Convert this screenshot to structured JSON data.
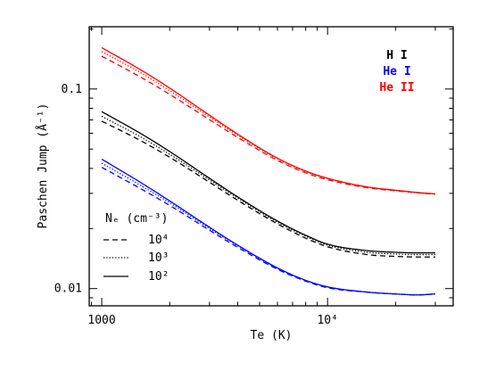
{
  "chart_data": {
    "type": "line",
    "xlabel": "Te (K)",
    "ylabel": "Paschen Jump (Å⁻¹)",
    "xscale": "log",
    "yscale": "log",
    "xlim": [
      880,
      36000
    ],
    "ylim": [
      0.0082,
      0.205
    ],
    "x_ticks": [
      {
        "value": 1000,
        "label": "1000"
      },
      {
        "value": 10000,
        "label": "10⁴"
      }
    ],
    "y_ticks": [
      {
        "value": 0.01,
        "label": "0.01"
      },
      {
        "value": 0.1,
        "label": "0.1"
      }
    ],
    "grid": false,
    "species_legend": {
      "placement": "top-right",
      "entries": [
        {
          "label": "H I",
          "color": "#000000"
        },
        {
          "label": "He I",
          "color": "#0000ff"
        },
        {
          "label": "He II",
          "color": "#ff0000"
        }
      ]
    },
    "density_legend": {
      "placement": "bottom-left",
      "title": "Nₑ (cm⁻³)",
      "entries": [
        {
          "label": "10⁴",
          "dash": "dashed"
        },
        {
          "label": "10³",
          "dash": "dotted"
        },
        {
          "label": "10²",
          "dash": "solid"
        }
      ]
    },
    "x": [
      1000,
      1500,
      2000,
      3000,
      4000,
      6000,
      8000,
      10000,
      15000,
      20000,
      25000,
      30000
    ],
    "series": [
      {
        "species": "He II",
        "density": "10²",
        "color": "#ff0000",
        "dash": "solid",
        "values": [
          0.161,
          0.124,
          0.101,
          0.0739,
          0.0594,
          0.045,
          0.0388,
          0.0357,
          0.0323,
          0.0311,
          0.0303,
          0.0298
        ]
      },
      {
        "species": "He II",
        "density": "10³",
        "color": "#ff0000",
        "dash": "dotted",
        "values": [
          0.154,
          0.12,
          0.098,
          0.0725,
          0.0586,
          0.0447,
          0.0386,
          0.0356,
          0.0322,
          0.031,
          0.0302,
          0.0298
        ]
      },
      {
        "species": "He II",
        "density": "10⁴",
        "color": "#ff0000",
        "dash": "dashed",
        "values": [
          0.146,
          0.114,
          0.094,
          0.0702,
          0.0572,
          0.0439,
          0.038,
          0.0351,
          0.032,
          0.0309,
          0.0302,
          0.0297
        ]
      },
      {
        "species": "H I",
        "density": "10²",
        "color": "#000000",
        "dash": "solid",
        "values": [
          0.077,
          0.0595,
          0.0486,
          0.0357,
          0.0288,
          0.0218,
          0.0185,
          0.0167,
          0.0155,
          0.0152,
          0.0151,
          0.0151
        ]
      },
      {
        "species": "H I",
        "density": "10³",
        "color": "#000000",
        "dash": "dotted",
        "values": [
          0.073,
          0.0572,
          0.0471,
          0.035,
          0.0284,
          0.0215,
          0.0183,
          0.0165,
          0.0152,
          0.0149,
          0.0148,
          0.0148
        ]
      },
      {
        "species": "H I",
        "density": "10⁴",
        "color": "#000000",
        "dash": "dashed",
        "values": [
          0.069,
          0.0548,
          0.0455,
          0.0341,
          0.0277,
          0.0211,
          0.0179,
          0.0162,
          0.0148,
          0.0145,
          0.0144,
          0.0144
        ]
      },
      {
        "species": "He I",
        "density": "10²",
        "color": "#0000ff",
        "dash": "solid",
        "values": [
          0.0445,
          0.0338,
          0.0275,
          0.0203,
          0.0165,
          0.0127,
          0.011,
          0.0102,
          0.0096,
          0.0094,
          0.0093,
          0.0094
        ]
      },
      {
        "species": "He I",
        "density": "10³",
        "color": "#0000ff",
        "dash": "dotted",
        "values": [
          0.0425,
          0.0327,
          0.0269,
          0.02,
          0.0164,
          0.0126,
          0.011,
          0.0102,
          0.0096,
          0.0094,
          0.0093,
          0.0094
        ]
      },
      {
        "species": "He I",
        "density": "10⁴",
        "color": "#0000ff",
        "dash": "dashed",
        "values": [
          0.0405,
          0.0315,
          0.0261,
          0.0196,
          0.0161,
          0.0125,
          0.0109,
          0.0101,
          0.0096,
          0.0094,
          0.0093,
          0.0094
        ]
      }
    ]
  }
}
